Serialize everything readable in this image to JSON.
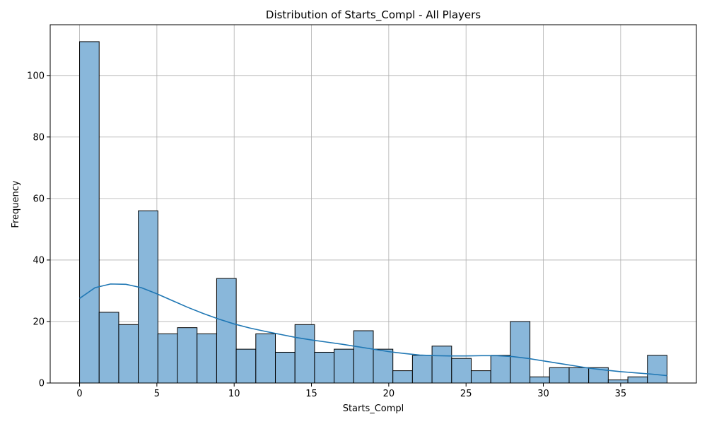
{
  "chart_data": {
    "type": "bar",
    "subtype": "histogram_with_kde",
    "title": "Distribution of Starts_Compl - All Players",
    "xlabel": "Starts_Compl",
    "ylabel": "Frequency",
    "xlim": [
      -1.9,
      39.9
    ],
    "ylim": [
      0,
      116.5
    ],
    "xticks": [
      0,
      5,
      10,
      15,
      20,
      25,
      30,
      35
    ],
    "yticks": [
      0,
      20,
      40,
      60,
      80,
      100
    ],
    "grid": true,
    "bin_edges": [
      0,
      1.267,
      2.533,
      3.8,
      5.067,
      6.333,
      7.6,
      8.867,
      10.133,
      11.4,
      12.667,
      13.933,
      15.2,
      16.467,
      17.733,
      19.0,
      20.267,
      21.533,
      22.8,
      24.067,
      25.333,
      26.6,
      27.867,
      29.133,
      30.4,
      31.667,
      32.933,
      34.2,
      35.467,
      36.733,
      38.0
    ],
    "counts": [
      111,
      23,
      19,
      56,
      16,
      18,
      16,
      34,
      11,
      16,
      10,
      19,
      10,
      11,
      17,
      11,
      4,
      9,
      12,
      8,
      4,
      9,
      20,
      2,
      5,
      5,
      5,
      1,
      2,
      9
    ],
    "bar_color": "#89b7da",
    "edge_color": "#000000",
    "kde": {
      "color": "#1f77b4",
      "x": [
        0,
        1,
        2,
        3,
        4,
        5,
        6,
        7,
        8,
        9,
        10,
        11,
        12,
        13,
        14,
        15,
        16,
        17,
        18,
        19,
        20,
        21,
        22,
        23,
        24,
        25,
        26,
        27,
        28,
        29,
        30,
        31,
        32,
        33,
        34,
        35,
        36,
        37,
        38
      ],
      "y": [
        27.5,
        31.0,
        32.2,
        32.1,
        31.0,
        29.0,
        26.8,
        24.6,
        22.6,
        20.8,
        19.2,
        17.9,
        16.8,
        15.8,
        14.8,
        14.0,
        13.3,
        12.6,
        11.8,
        11.0,
        10.2,
        9.6,
        9.1,
        8.9,
        8.8,
        8.8,
        8.9,
        8.9,
        8.6,
        8.0,
        7.2,
        6.4,
        5.6,
        4.8,
        4.2,
        3.7,
        3.3,
        2.9,
        2.4
      ]
    }
  }
}
